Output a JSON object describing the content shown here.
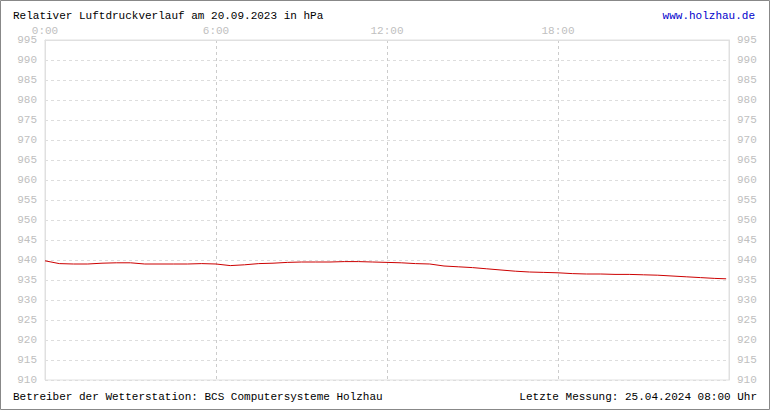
{
  "chart_data": {
    "type": "line",
    "title": "Relativer Luftdruckverlauf am 20.09.2023 in hPa",
    "subtitle": "www.holzhau.de",
    "annotations": [
      "Betreiber der Wetterstation: BCS Computersysteme Holzhau",
      "Letzte Messung: 25.04.2024 08:00 Uhr"
    ],
    "x": [
      0,
      0.5,
      1,
      1.5,
      2,
      2.5,
      3,
      3.5,
      4,
      4.5,
      5,
      5.5,
      6,
      6.5,
      7,
      7.5,
      8,
      8.5,
      9,
      9.5,
      10,
      10.5,
      11,
      11.5,
      12,
      12.5,
      13,
      13.5,
      14,
      14.5,
      15,
      15.5,
      16,
      16.5,
      17,
      17.5,
      18,
      18.5,
      19,
      19.5,
      20,
      20.5,
      21,
      21.5,
      22,
      22.5,
      23,
      23.5,
      23.9
    ],
    "values": [
      939.8,
      939.1,
      939.0,
      939.0,
      939.2,
      939.3,
      939.3,
      939.0,
      939.0,
      939.0,
      939.0,
      939.1,
      939.0,
      938.6,
      938.8,
      939.1,
      939.2,
      939.4,
      939.5,
      939.5,
      939.5,
      939.6,
      939.6,
      939.5,
      939.4,
      939.3,
      939.1,
      939.0,
      938.5,
      938.3,
      938.1,
      937.8,
      937.5,
      937.2,
      937.0,
      936.9,
      936.8,
      936.6,
      936.5,
      936.5,
      936.4,
      936.4,
      936.3,
      936.2,
      936.0,
      935.8,
      935.6,
      935.4,
      935.3
    ],
    "color": "#cc0000",
    "xlim": [
      0,
      24
    ],
    "xticks": [
      {
        "value": 0,
        "label": "0:00"
      },
      {
        "value": 6,
        "label": "6:00"
      },
      {
        "value": 12,
        "label": "12:00"
      },
      {
        "value": 18,
        "label": "18:00"
      }
    ],
    "ylim": [
      910,
      995
    ],
    "yticks": [
      910,
      915,
      920,
      925,
      930,
      935,
      940,
      945,
      950,
      955,
      960,
      965,
      970,
      975,
      980,
      985,
      990,
      995
    ],
    "y2lim": [
      910,
      995
    ],
    "y2ticks": [
      910,
      915,
      920,
      925,
      930,
      935,
      940,
      945,
      950,
      955,
      960,
      965,
      970,
      975,
      980,
      985,
      990,
      995
    ],
    "grid": true
  }
}
